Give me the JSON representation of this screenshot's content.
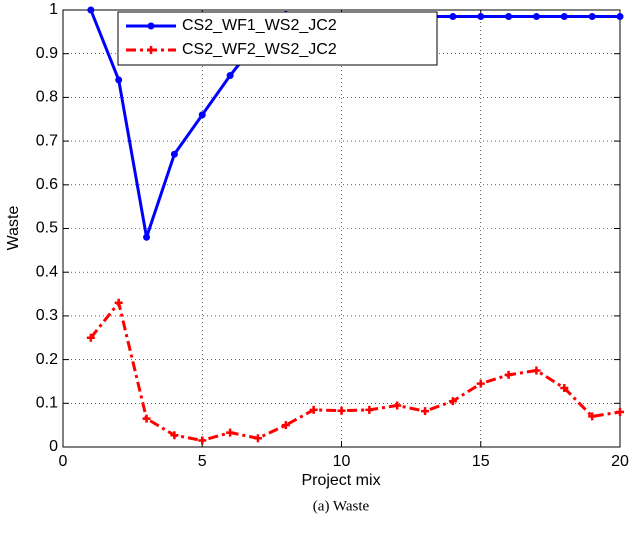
{
  "chart_data": {
    "type": "line",
    "caption": "(a)  Waste",
    "xlabel": "Project mix",
    "ylabel": "Waste",
    "x": [
      1,
      2,
      3,
      4,
      5,
      6,
      7,
      8,
      9,
      10,
      11,
      12,
      13,
      14,
      15,
      16,
      17,
      18,
      19,
      20
    ],
    "series": [
      {
        "name": "CS2_WF1_WS2_JC2",
        "color": "#0000ff",
        "linestyle": "solid",
        "marker": "dot",
        "values": [
          1,
          0.84,
          0.48,
          0.67,
          0.76,
          0.85,
          0.93,
          0.99,
          0.985,
          0.985,
          0.985,
          0.985,
          0.985,
          0.985,
          0.985,
          0.985,
          0.985,
          0.985,
          0.985,
          0.985
        ]
      },
      {
        "name": "CS2_WF2_WS2_JC2",
        "color": "#ff0000",
        "linestyle": "dash-dot",
        "marker": "plus",
        "values": [
          0.25,
          0.33,
          0.065,
          0.027,
          0.015,
          0.033,
          0.02,
          0.05,
          0.085,
          0.083,
          0.085,
          0.095,
          0.082,
          0.105,
          0.145,
          0.165,
          0.175,
          0.135,
          0.07,
          0.08
        ]
      }
    ],
    "xlim": [
      0,
      20
    ],
    "xticks": [
      0,
      5,
      10,
      15,
      20
    ],
    "ylim": [
      0,
      1
    ],
    "yticks": [
      0,
      0.1,
      0.2,
      0.3,
      0.4,
      0.5,
      0.6,
      0.7,
      0.8,
      0.9,
      1
    ],
    "grid": true,
    "legend": "upper-left"
  }
}
